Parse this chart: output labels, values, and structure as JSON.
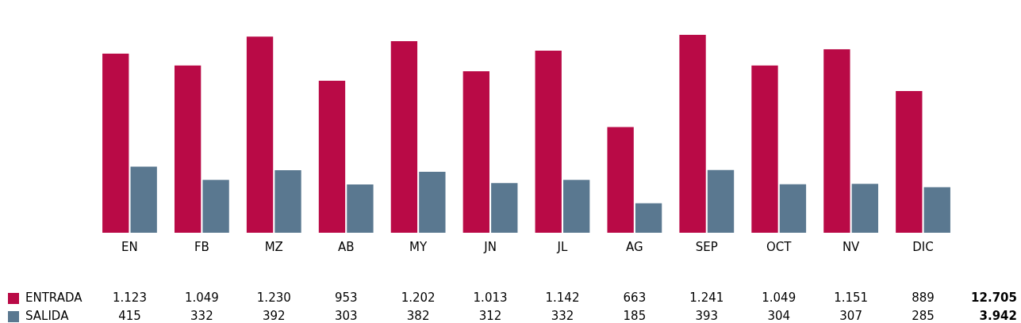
{
  "chart_data": {
    "type": "bar",
    "categories": [
      "EN",
      "FB",
      "MZ",
      "AB",
      "MY",
      "JN",
      "JL",
      "AG",
      "SEP",
      "OCT",
      "NV",
      "DIC"
    ],
    "series": [
      {
        "name": "ENTRADA",
        "color": "#b90a46",
        "values": [
          1123,
          1049,
          1230,
          953,
          1202,
          1013,
          1142,
          663,
          1241,
          1049,
          1151,
          889
        ],
        "value_labels": [
          "1.123",
          "1.049",
          "1.230",
          "953",
          "1.202",
          "1.013",
          "1.142",
          "663",
          "1.241",
          "1.049",
          "1.151",
          "889"
        ]
      },
      {
        "name": "SALIDA",
        "color": "#5a7890",
        "values": [
          415,
          332,
          392,
          303,
          382,
          312,
          332,
          185,
          393,
          304,
          307,
          285
        ],
        "value_labels": [
          "415",
          "332",
          "392",
          "303",
          "382",
          "312",
          "332",
          "185",
          "393",
          "304",
          "307",
          "285"
        ]
      }
    ],
    "annotations": [
      "12.705",
      "3.942"
    ],
    "legend": "bottom left",
    "grid": false
  }
}
